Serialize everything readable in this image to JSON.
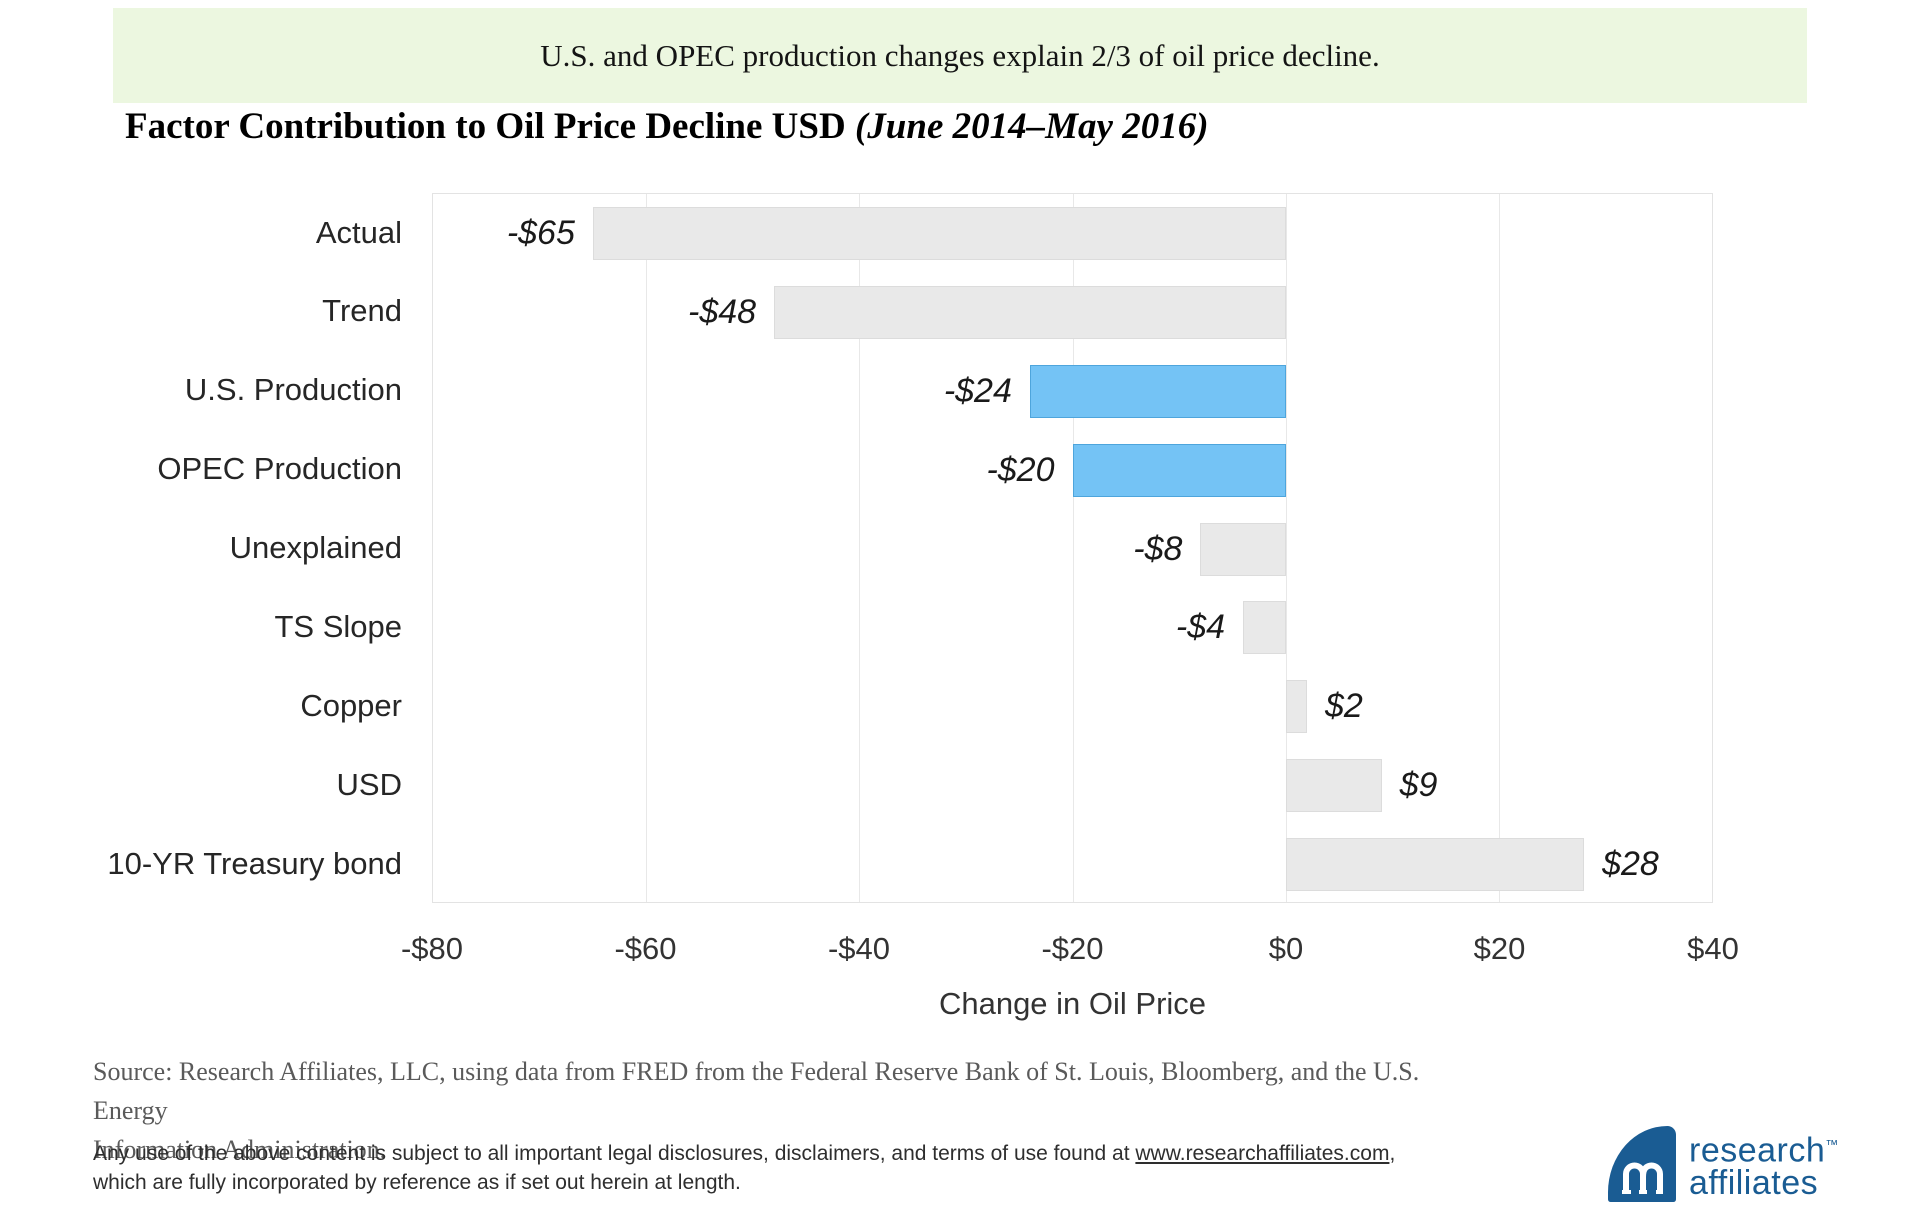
{
  "banner": {
    "text": "U.S. and OPEC production changes explain 2/3 of oil price decline."
  },
  "title": {
    "main": "Factor Contribution to Oil Price Decline USD ",
    "period": "(June 2014–May 2016)"
  },
  "chart_data": {
    "type": "bar",
    "orientation": "horizontal",
    "title": "Factor Contribution to Oil Price Decline USD (June 2014–May 2016)",
    "categories": [
      "Actual",
      "Trend",
      "U.S. Production",
      "OPEC Production",
      "Unexplained",
      "TS Slope",
      "Copper",
      "USD",
      "10-YR Treasury bond"
    ],
    "values": [
      -65,
      -48,
      -24,
      -20,
      -8,
      -4,
      2,
      9,
      28
    ],
    "labels": [
      "-$65",
      "-$48",
      "-$24",
      "-$20",
      "-$8",
      "-$4",
      "$2",
      "$9",
      "$28"
    ],
    "highlighted": [
      false,
      false,
      true,
      true,
      false,
      false,
      false,
      false,
      false
    ],
    "xlabel": "Change in Oil Price",
    "ylabel": "",
    "xlim": [
      -80,
      40
    ],
    "x_ticks": [
      -80,
      -60,
      -40,
      -20,
      0,
      20,
      40
    ],
    "x_tick_labels": [
      "-$80",
      "-$60",
      "-$40",
      "-$20",
      "$0",
      "$20",
      "$40"
    ],
    "grid": "vertical",
    "legend": "none"
  },
  "colors": {
    "banner_bg": "#ECF7E0",
    "bar_default": "#E9E9E9",
    "bar_default_border": "#DCDCDC",
    "bar_highlight": "#74C3F5",
    "bar_highlight_border": "#4EA5DC",
    "logo_blue": "#1A5C93"
  },
  "source": {
    "line1": "Source: Research Affiliates, LLC, using data from FRED from the Federal Reserve Bank of St. Louis, Bloomberg, and the U.S. Energy",
    "line2": "Information Administration."
  },
  "legal": {
    "line1_pre": "Any use of the above content is subject to all important legal disclosures, disclaimers, and terms of use found at ",
    "link": "www.researchaffiliates.com",
    "line1_post": ",",
    "line2": "which are fully incorporated by reference as if set out herein at length."
  },
  "logo": {
    "line1": "research",
    "trademark": "™",
    "line2": "affiliates"
  }
}
